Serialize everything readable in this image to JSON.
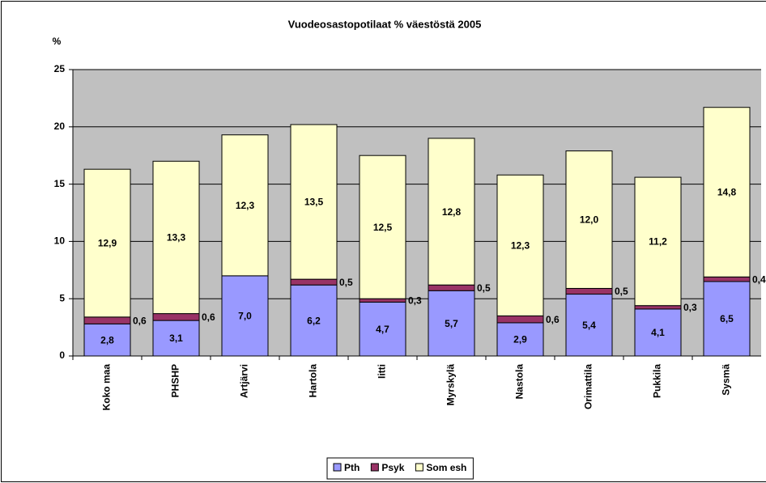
{
  "chart_data": {
    "type": "stacked_bar",
    "title": "Vuodeosastopotilaat % väestöstä 2005",
    "y_label": "%",
    "categories": [
      "Koko maa",
      "PHSHP",
      "Artjärvi",
      "Hartola",
      "Iitti",
      "Myrskylä",
      "Nastola",
      "Orimattila",
      "Pukkila",
      "Sysmä"
    ],
    "series": [
      {
        "name": "Pth",
        "color": "#9999ff",
        "values": [
          2.8,
          3.1,
          7.0,
          6.2,
          4.7,
          5.7,
          2.9,
          5.4,
          4.1,
          6.5
        ],
        "value_labels": [
          "2,8",
          "3,1",
          "7,0",
          "6,2",
          "4,7",
          "5,7",
          "2,9",
          "5,4",
          "4,1",
          "6,5"
        ]
      },
      {
        "name": "Psyk",
        "color": "#993366",
        "values": [
          0.6,
          0.6,
          0,
          0.5,
          0.3,
          0.5,
          0.6,
          0.5,
          0.3,
          0.4
        ],
        "value_labels": [
          "0,6",
          "0,6",
          null,
          "0,5",
          "0,3",
          "0,5",
          "0,6",
          "0,5",
          "0,3",
          "0,4"
        ]
      },
      {
        "name": "Som esh",
        "color": "#ffffcc",
        "values": [
          12.9,
          13.3,
          12.3,
          13.5,
          12.5,
          12.8,
          12.3,
          12.0,
          11.2,
          14.8
        ],
        "value_labels": [
          "12,9",
          "13,3",
          "12,3",
          "13,5",
          "12,5",
          "12,8",
          "12,3",
          "12,0",
          "11,2",
          "14,8"
        ]
      }
    ],
    "ylim": [
      0,
      25
    ],
    "yticks": [
      0,
      5,
      10,
      15,
      20,
      25
    ],
    "grid": true,
    "legend": "bottom"
  }
}
